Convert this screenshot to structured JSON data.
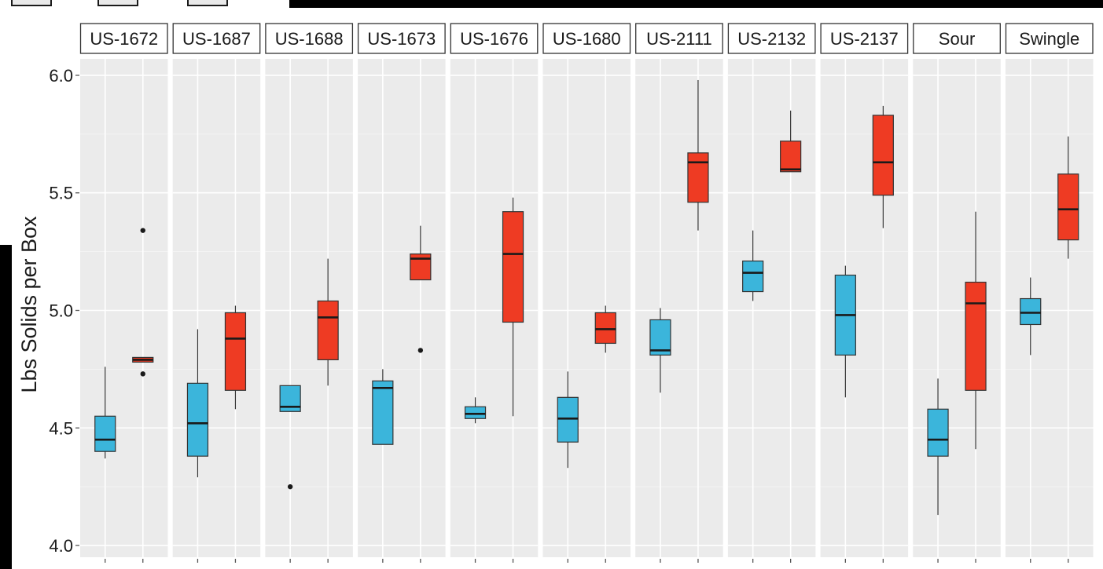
{
  "chart_data": {
    "type": "box",
    "ylabel": "Lbs Solids per Box",
    "ylim": [
      3.95,
      6.07
    ],
    "yticks": [
      "4.0",
      "4.5",
      "5.0",
      "5.5",
      "6.0"
    ],
    "grid": true,
    "facets": [
      "US-1672",
      "US-1687",
      "US-1688",
      "US-1673",
      "US-1676",
      "US-1680",
      "US-2111",
      "US-2132",
      "US-2137",
      "Sour",
      "Swingle"
    ],
    "series_colors": [
      "#3bb5db",
      "#ee3b23"
    ],
    "boxes": [
      [
        {
          "min": 4.37,
          "q1": 4.4,
          "median": 4.45,
          "q3": 4.55,
          "max": 4.76,
          "outliers": []
        },
        {
          "min": 4.78,
          "q1": 4.78,
          "median": 4.79,
          "q3": 4.8,
          "max": 4.8,
          "outliers": [
            5.34,
            4.73
          ]
        }
      ],
      [
        {
          "min": 4.29,
          "q1": 4.38,
          "median": 4.52,
          "q3": 4.69,
          "max": 4.92,
          "outliers": []
        },
        {
          "min": 4.58,
          "q1": 4.66,
          "median": 4.88,
          "q3": 4.99,
          "max": 5.02,
          "outliers": []
        }
      ],
      [
        {
          "min": 4.57,
          "q1": 4.57,
          "median": 4.59,
          "q3": 4.68,
          "max": 4.68,
          "outliers": [
            4.25
          ]
        },
        {
          "min": 4.68,
          "q1": 4.79,
          "median": 4.97,
          "q3": 5.04,
          "max": 5.22,
          "outliers": []
        }
      ],
      [
        {
          "min": 4.43,
          "q1": 4.43,
          "median": 4.67,
          "q3": 4.7,
          "max": 4.75,
          "outliers": []
        },
        {
          "min": 5.13,
          "q1": 5.13,
          "median": 5.22,
          "q3": 5.24,
          "max": 5.36,
          "outliers": [
            4.83
          ]
        }
      ],
      [
        {
          "min": 4.52,
          "q1": 4.54,
          "median": 4.56,
          "q3": 4.59,
          "max": 4.63,
          "outliers": []
        },
        {
          "min": 4.55,
          "q1": 4.95,
          "median": 5.24,
          "q3": 5.42,
          "max": 5.48,
          "outliers": []
        }
      ],
      [
        {
          "min": 4.33,
          "q1": 4.44,
          "median": 4.54,
          "q3": 4.63,
          "max": 4.74,
          "outliers": []
        },
        {
          "min": 4.82,
          "q1": 4.86,
          "median": 4.92,
          "q3": 4.99,
          "max": 5.02,
          "outliers": []
        }
      ],
      [
        {
          "min": 4.65,
          "q1": 4.81,
          "median": 4.83,
          "q3": 4.96,
          "max": 5.01,
          "outliers": []
        },
        {
          "min": 5.34,
          "q1": 5.46,
          "median": 5.63,
          "q3": 5.67,
          "max": 5.98,
          "outliers": []
        }
      ],
      [
        {
          "min": 5.04,
          "q1": 5.08,
          "median": 5.16,
          "q3": 5.21,
          "max": 5.34,
          "outliers": []
        },
        {
          "min": 5.59,
          "q1": 5.59,
          "median": 5.6,
          "q3": 5.72,
          "max": 5.85,
          "outliers": []
        }
      ],
      [
        {
          "min": 4.63,
          "q1": 4.81,
          "median": 4.98,
          "q3": 5.15,
          "max": 5.19,
          "outliers": []
        },
        {
          "min": 5.35,
          "q1": 5.49,
          "median": 5.63,
          "q3": 5.83,
          "max": 5.87,
          "outliers": []
        }
      ],
      [
        {
          "min": 4.13,
          "q1": 4.38,
          "median": 4.45,
          "q3": 4.58,
          "max": 4.71,
          "outliers": []
        },
        {
          "min": 4.41,
          "q1": 4.66,
          "median": 5.03,
          "q3": 5.12,
          "max": 5.42,
          "outliers": []
        }
      ],
      [
        {
          "min": 4.81,
          "q1": 4.94,
          "median": 4.99,
          "q3": 5.05,
          "max": 5.14,
          "outliers": []
        },
        {
          "min": 5.22,
          "q1": 5.3,
          "median": 5.43,
          "q3": 5.58,
          "max": 5.74,
          "outliers": []
        }
      ]
    ]
  }
}
